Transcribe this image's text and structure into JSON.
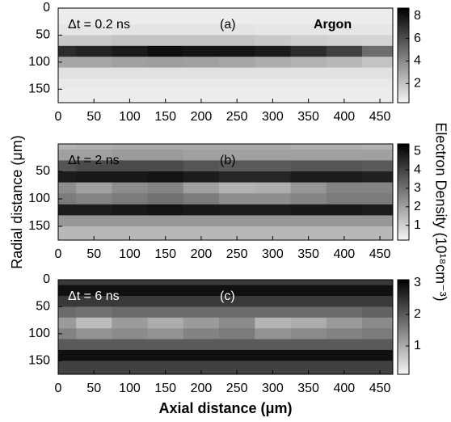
{
  "chart_data": [
    {
      "type": "heatmap",
      "annotations": [
        "Δt = 0.2 ns",
        "(a)",
        "Argon"
      ],
      "annotation_color": "#000000",
      "x": [
        0,
        50,
        100,
        150,
        200,
        250,
        300,
        350,
        400,
        450
      ],
      "y": [
        0,
        20,
        40,
        60,
        80,
        100,
        120,
        140,
        160
      ],
      "values": [
        [
          0.6,
          0.6,
          0.6,
          0.6,
          0.6,
          0.6,
          0.6,
          0.6,
          0.6,
          0.6
        ],
        [
          0.6,
          0.6,
          0.6,
          0.6,
          0.6,
          0.6,
          0.6,
          0.6,
          0.6,
          0.6
        ],
        [
          0.8,
          0.8,
          0.9,
          0.9,
          0.9,
          0.9,
          0.8,
          0.8,
          0.8,
          0.8
        ],
        [
          1.8,
          1.8,
          2,
          2,
          2,
          2,
          1.8,
          1.6,
          1.5,
          1.4
        ],
        [
          7.2,
          7.5,
          7.8,
          8.2,
          8,
          8,
          7.8,
          7.2,
          6.5,
          5
        ],
        [
          3,
          3,
          3.2,
          3.3,
          3.2,
          3,
          2.8,
          2.6,
          2.4,
          2
        ],
        [
          1,
          1,
          1,
          1,
          1,
          1,
          1,
          1,
          1,
          1
        ],
        [
          0.7,
          0.7,
          0.7,
          0.7,
          0.7,
          0.7,
          0.7,
          0.7,
          0.7,
          0.7
        ],
        [
          0.6,
          0.6,
          0.6,
          0.6,
          0.6,
          0.6,
          0.6,
          0.6,
          0.6,
          0.6
        ]
      ],
      "xlim": [
        0,
        468
      ],
      "ylim": [
        0,
        175
      ],
      "xticks": [
        0,
        50,
        100,
        150,
        200,
        250,
        300,
        350,
        400,
        450
      ],
      "yticks": [
        0,
        50,
        100,
        150
      ],
      "clim": [
        0.3,
        8.7
      ],
      "cticks": [
        2,
        4,
        6,
        8
      ]
    },
    {
      "type": "heatmap",
      "annotations": [
        "Δt = 2 ns",
        "(b)"
      ],
      "annotation_color": "#000000",
      "ylabel": "Radial distance (μm)",
      "colorbar_label": "Electron Density (10¹⁸cm⁻³)",
      "x": [
        0,
        50,
        100,
        150,
        200,
        250,
        300,
        350,
        400,
        450
      ],
      "y": [
        0,
        20,
        40,
        60,
        80,
        100,
        120,
        140,
        160
      ],
      "values": [
        [
          1.6,
          1.7,
          1.8,
          1.8,
          1.8,
          1.8,
          1.8,
          1.7,
          1.7,
          1.6
        ],
        [
          2,
          2,
          2.1,
          2.1,
          2,
          2,
          2,
          2,
          2,
          2
        ],
        [
          3.6,
          3.8,
          3.8,
          3.8,
          3.6,
          3.5,
          3.5,
          3.6,
          3.6,
          3.5
        ],
        [
          4.8,
          4.9,
          4.9,
          5,
          4.8,
          4.6,
          4.6,
          4.8,
          4.8,
          4.7
        ],
        [
          2.4,
          2,
          2.4,
          2.6,
          2,
          1.6,
          1.7,
          2.2,
          2.6,
          2.6
        ],
        [
          2.8,
          2.6,
          2.8,
          3,
          2.8,
          2.4,
          2.4,
          2.6,
          2.8,
          2.8
        ],
        [
          4.8,
          4.8,
          4.9,
          5,
          4.9,
          4.8,
          4.8,
          4.9,
          4.9,
          4.8
        ],
        [
          2.2,
          2.2,
          2.2,
          2.2,
          2.2,
          2.2,
          2.2,
          2.2,
          2.2,
          2.2
        ],
        [
          1.5,
          1.5,
          1.5,
          1.5,
          1.5,
          1.5,
          1.5,
          1.5,
          1.5,
          1.5
        ]
      ],
      "xlim": [
        0,
        468
      ],
      "ylim": [
        0,
        175
      ],
      "xticks": [
        0,
        50,
        100,
        150,
        200,
        250,
        300,
        350,
        400,
        450
      ],
      "yticks": [
        50,
        100,
        150
      ],
      "clim": [
        0.2,
        5.4
      ],
      "cticks": [
        1,
        2,
        3,
        4,
        5
      ]
    },
    {
      "type": "heatmap",
      "annotations": [
        "Δt = 6 ns",
        "(c)"
      ],
      "annotation_color": "#ffffff",
      "xlabel": "Axial distance (μm)",
      "x": [
        0,
        50,
        100,
        150,
        200,
        250,
        300,
        350,
        400,
        450
      ],
      "y": [
        0,
        20,
        40,
        60,
        80,
        100,
        120,
        140,
        160
      ],
      "values": [
        [
          2.4,
          2.4,
          2.4,
          2.4,
          2.4,
          2.4,
          2.4,
          2.4,
          2.4,
          2.4
        ],
        [
          2.9,
          2.9,
          2.9,
          2.9,
          2.9,
          2.9,
          2.9,
          2.9,
          2.9,
          2.9
        ],
        [
          2.4,
          2.4,
          2.4,
          2.4,
          2.4,
          2.4,
          2.4,
          2.4,
          2.4,
          2.4
        ],
        [
          1.8,
          1.7,
          1.8,
          1.8,
          1.8,
          1.8,
          1.8,
          1.8,
          1.8,
          1.9
        ],
        [
          1.2,
          0.8,
          1.2,
          1,
          1.2,
          1.4,
          0.9,
          1,
          1.2,
          1.4
        ],
        [
          1.5,
          1.3,
          1.4,
          1.3,
          1.5,
          1.6,
          1.3,
          1.4,
          1.5,
          1.6
        ],
        [
          2,
          2,
          2,
          2,
          2,
          2,
          2,
          2,
          2,
          2
        ],
        [
          2.9,
          2.9,
          2.9,
          2.9,
          2.9,
          2.9,
          2.9,
          2.9,
          2.9,
          2.9
        ],
        [
          2.3,
          2.3,
          2.3,
          2.3,
          2.3,
          2.3,
          2.3,
          2.3,
          2.3,
          2.3
        ]
      ],
      "xlim": [
        0,
        468
      ],
      "ylim": [
        0,
        175
      ],
      "xticks": [
        0,
        50,
        100,
        150,
        200,
        250,
        300,
        350,
        400,
        450
      ],
      "yticks": [
        0,
        50,
        100,
        150
      ],
      "clim": [
        0.1,
        3.1
      ],
      "cticks": [
        1,
        2,
        3
      ]
    }
  ]
}
